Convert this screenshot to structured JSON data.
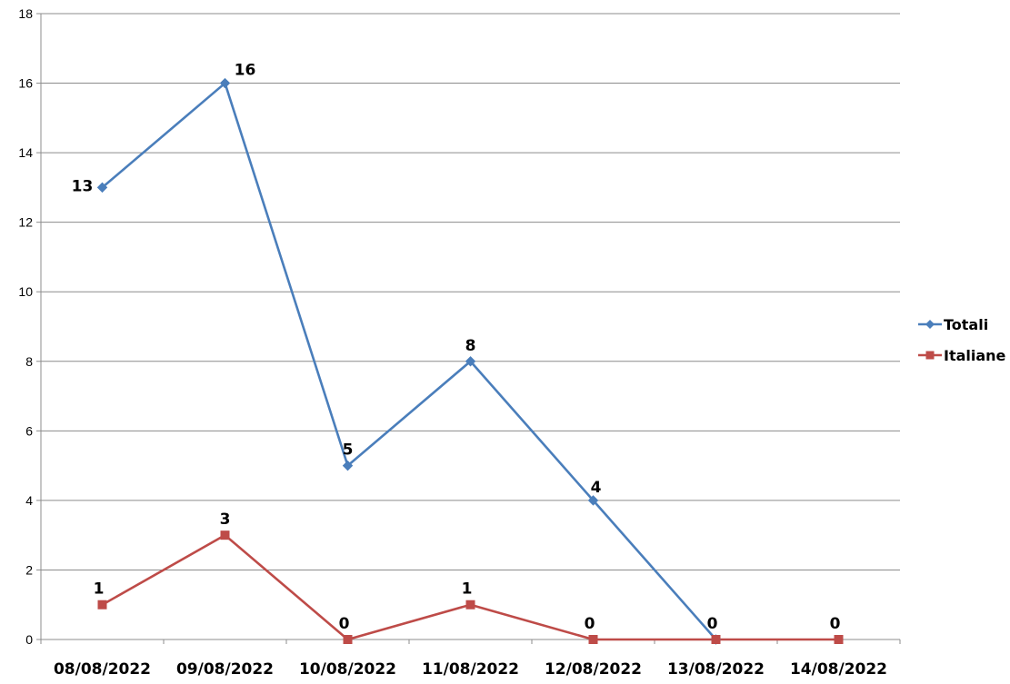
{
  "chart_data": {
    "type": "line",
    "title": "",
    "xlabel": "",
    "ylabel": "",
    "categories": [
      "08/08/2022",
      "09/08/2022",
      "10/08/2022",
      "11/08/2022",
      "12/08/2022",
      "13/08/2022",
      "14/08/2022"
    ],
    "ylim": [
      0,
      18
    ],
    "yticks": [
      0,
      2,
      4,
      6,
      8,
      10,
      12,
      14,
      16,
      18
    ],
    "grid": true,
    "legend_position": "right",
    "series": [
      {
        "name": "Totali",
        "color": "#4a7ebb",
        "marker": "diamond",
        "values": [
          13,
          16,
          5,
          8,
          4,
          0,
          null
        ],
        "labels": [
          "13",
          "16",
          "5",
          "8",
          "4",
          "",
          ""
        ]
      },
      {
        "name": "Italiane",
        "color": "#be4b48",
        "marker": "square",
        "values": [
          1,
          3,
          0,
          1,
          0,
          0,
          0
        ],
        "labels": [
          "1",
          "3",
          "0",
          "1",
          "0",
          "0",
          "0"
        ]
      }
    ]
  }
}
